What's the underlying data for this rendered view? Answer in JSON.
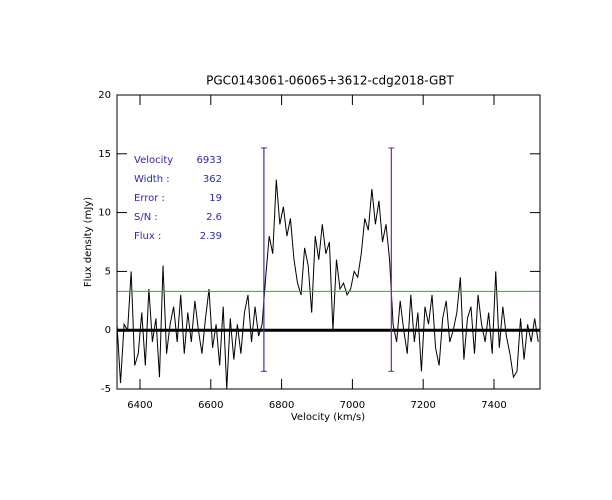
{
  "chart_data": {
    "type": "line",
    "title": "PGC0143061-06065+3612-cdg2018-GBT",
    "xlabel": "Velocity (km/s)",
    "ylabel": "Flux density (mJy)",
    "xlim": [
      6335,
      7530
    ],
    "ylim": [
      -5,
      20
    ],
    "xticks": [
      6400,
      6600,
      6800,
      7000,
      7200,
      7400
    ],
    "yticks": [
      -5,
      0,
      5,
      10,
      15,
      20
    ],
    "x": [
      6335,
      6345,
      6355,
      6365,
      6375,
      6385,
      6395,
      6405,
      6415,
      6425,
      6435,
      6445,
      6455,
      6465,
      6475,
      6485,
      6495,
      6505,
      6515,
      6525,
      6535,
      6545,
      6555,
      6565,
      6575,
      6585,
      6595,
      6605,
      6615,
      6625,
      6635,
      6645,
      6655,
      6665,
      6675,
      6685,
      6695,
      6705,
      6715,
      6725,
      6735,
      6745,
      6755,
      6765,
      6775,
      6785,
      6795,
      6805,
      6815,
      6825,
      6835,
      6845,
      6855,
      6865,
      6875,
      6885,
      6895,
      6905,
      6915,
      6925,
      6935,
      6945,
      6955,
      6965,
      6975,
      6985,
      6995,
      7005,
      7015,
      7025,
      7035,
      7045,
      7055,
      7065,
      7075,
      7085,
      7095,
      7105,
      7115,
      7125,
      7135,
      7145,
      7155,
      7165,
      7175,
      7185,
      7195,
      7205,
      7215,
      7225,
      7235,
      7245,
      7255,
      7265,
      7275,
      7285,
      7295,
      7305,
      7315,
      7325,
      7335,
      7345,
      7355,
      7365,
      7375,
      7385,
      7395,
      7405,
      7415,
      7425,
      7435,
      7445,
      7455,
      7465,
      7475,
      7485,
      7495,
      7505,
      7515,
      7525
    ],
    "series": [
      {
        "color": "#000000",
        "values": [
          0.5,
          -4.5,
          0.5,
          0,
          5,
          -3,
          -2,
          1.5,
          -3,
          3.5,
          -1,
          1,
          -4,
          5.5,
          -2,
          0.5,
          2,
          -1,
          3,
          -2,
          1.5,
          -1,
          2.5,
          0,
          -2,
          1,
          3.5,
          -1.5,
          0.5,
          -3,
          2,
          -5,
          1,
          -2.5,
          0.5,
          -2,
          1.5,
          3,
          -1,
          2,
          -0.5,
          0.5,
          4.5,
          8,
          6.5,
          12.8,
          9,
          10.5,
          8,
          9.5,
          6,
          4,
          3,
          7,
          5.5,
          1.5,
          8,
          6,
          9,
          6.5,
          7.5,
          0,
          6,
          3.5,
          4,
          3,
          3.5,
          5,
          4.5,
          6.5,
          9.5,
          8.5,
          12,
          9,
          11,
          7.5,
          9,
          6,
          0.5,
          -1,
          2.5,
          0,
          -2,
          3,
          -1,
          1.5,
          -3.5,
          2,
          0.5,
          3,
          -1.5,
          -3,
          1,
          2.5,
          -1,
          0,
          1.5,
          4.5,
          -2.5,
          1,
          2,
          -2,
          3,
          0.5,
          -1,
          1.5,
          -2,
          5,
          -1.5,
          2,
          -0.5,
          -2,
          -4,
          -3.5,
          1,
          -2.5,
          0.5,
          -1,
          1,
          -1
        ]
      }
    ],
    "hlines": [
      {
        "value": 3.3,
        "color": "#00cc00",
        "width": 1
      },
      {
        "value": 0,
        "color": "#000000",
        "width": 3
      }
    ],
    "vlines": [
      {
        "value": 6750,
        "ymin": -3.5,
        "ymax": 15.5,
        "color": "#3333aa"
      },
      {
        "value": 7110,
        "ymin": -3.5,
        "ymax": 15.5,
        "color": "#7a2a8a"
      }
    ],
    "stats": [
      {
        "label": "Velocity",
        "value": 6933
      },
      {
        "label": "Width :",
        "value": 362
      },
      {
        "label": "Error :",
        "value": 19
      },
      {
        "label": "S/N :",
        "value": 2.6
      },
      {
        "label": "Flux :",
        "value": 2.39
      }
    ],
    "stats_color": "#2a2ab0"
  }
}
